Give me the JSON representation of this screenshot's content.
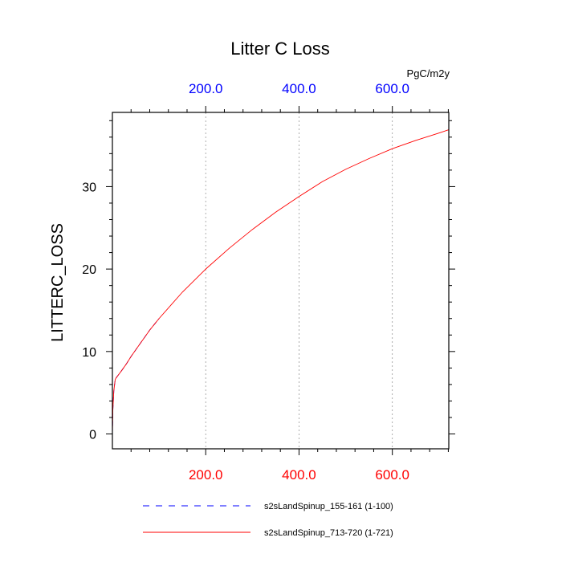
{
  "chart_data": {
    "type": "line",
    "title": "Litter C Loss",
    "ylabel": "LITTERC_LOSS",
    "units": "PgC/m2y",
    "xlim": [
      0,
      721
    ],
    "ylim": [
      -1.8,
      39
    ],
    "yticks": [
      0,
      10,
      20,
      30
    ],
    "ytick_labels": [
      "0",
      "10",
      "20",
      "30"
    ],
    "xticks_bottom": [
      200,
      400,
      600
    ],
    "xtick_labels_bottom": [
      "200.0",
      "400.0",
      "600.0"
    ],
    "xticks_top": [
      200,
      400,
      600
    ],
    "xtick_labels_top": [
      "200.0",
      "400.0",
      "600.0"
    ],
    "grid_x": true,
    "colors": {
      "bottom_axis": "#ff0000",
      "top_axis": "#0000ff"
    },
    "series": [
      {
        "name": "s2sLandSpinup_155-161 (1-100)",
        "color": "#0000ff",
        "dash": "dashed",
        "x": [
          0,
          1,
          3,
          6,
          8,
          12,
          20,
          30,
          40,
          50,
          60,
          70,
          80,
          90,
          100
        ],
        "y": [
          0,
          3.0,
          5.2,
          6.6,
          6.8,
          7.1,
          7.7,
          8.5,
          9.4,
          10.2,
          11.0,
          11.8,
          12.6,
          13.3,
          14.0
        ]
      },
      {
        "name": "s2sLandSpinup_713-720 (1-721)",
        "color": "#ff0000",
        "dash": "solid",
        "x": [
          0,
          1,
          3,
          6,
          8,
          12,
          20,
          30,
          40,
          50,
          60,
          70,
          80,
          90,
          100,
          150,
          200,
          250,
          300,
          350,
          400,
          450,
          500,
          550,
          600,
          650,
          700,
          721
        ],
        "y": [
          0,
          3.0,
          5.2,
          6.6,
          6.8,
          7.1,
          7.7,
          8.5,
          9.4,
          10.2,
          11.0,
          11.8,
          12.6,
          13.3,
          14.0,
          17.2,
          20.0,
          22.5,
          24.8,
          26.9,
          28.8,
          30.6,
          32.1,
          33.4,
          34.6,
          35.6,
          36.5,
          36.9
        ]
      }
    ],
    "legend_position": "bottom"
  }
}
